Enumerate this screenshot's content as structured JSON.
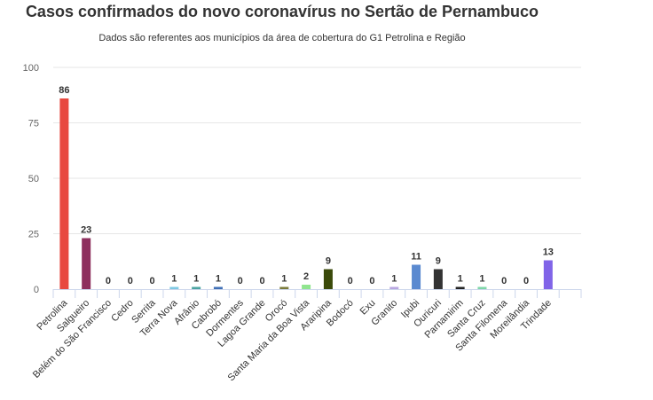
{
  "chart_data": {
    "type": "bar",
    "title": "Casos confirmados do novo coronavírus no Sertão de Pernambuco",
    "subtitle": "Dados são referentes aos municípios da área de cobertura do G1 Petrolina e Região",
    "xlabel": "",
    "ylabel": "",
    "ylim": [
      0,
      100
    ],
    "yticks": [
      "0",
      "25",
      "50",
      "75",
      "100"
    ],
    "grid": true,
    "categories": [
      "Petrolina",
      "Salgueiro",
      "Belém do São Francisco",
      "Cedro",
      "Serrita",
      "Terra Nova",
      "Afrânio",
      "Cabrobó",
      "Dormentes",
      "Lagoa Grande",
      "Orocó",
      "Santa Maria da Boa Vista",
      "Araripina",
      "Bodocó",
      "Exu",
      "Granito",
      "Ipubi",
      "Ouricuri",
      "Parnamirim",
      "Santa Cruz",
      "Santa Filomena",
      "Moreilândia",
      "Trindade"
    ],
    "values": [
      86,
      23,
      0,
      0,
      0,
      1,
      1,
      1,
      0,
      0,
      1,
      2,
      9,
      0,
      0,
      1,
      11,
      9,
      1,
      1,
      0,
      0,
      13
    ],
    "colors": [
      "#e8483f",
      "#8e2f5e",
      "#cccccc",
      "#cccccc",
      "#cccccc",
      "#7ec8e3",
      "#4aa3a0",
      "#3f6fb5",
      "#cccccc",
      "#cccccc",
      "#7a7a3a",
      "#90e58f",
      "#3a4a0a",
      "#cccccc",
      "#cccccc",
      "#b8a6e0",
      "#5b8ad0",
      "#333333",
      "#222222",
      "#7ed6a8",
      "#cccccc",
      "#cccccc",
      "#8064e8"
    ]
  }
}
